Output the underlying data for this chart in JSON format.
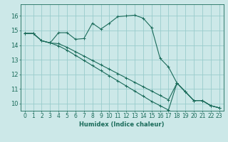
{
  "xlabel": "Humidex (Indice chaleur)",
  "background_color": "#cce8e8",
  "grid_color": "#99cccc",
  "line_color": "#1a6b5a",
  "xlim": [
    -0.5,
    23.5
  ],
  "ylim": [
    9.5,
    16.8
  ],
  "x_ticks": [
    0,
    1,
    2,
    3,
    4,
    5,
    6,
    7,
    8,
    9,
    10,
    11,
    12,
    13,
    14,
    15,
    16,
    17,
    18,
    19,
    20,
    21,
    22,
    23
  ],
  "y_ticks": [
    10,
    11,
    12,
    13,
    14,
    15,
    16
  ],
  "line1_y": [
    14.8,
    14.8,
    14.3,
    14.15,
    14.85,
    14.85,
    14.4,
    14.45,
    15.5,
    15.1,
    15.5,
    15.95,
    16.0,
    16.05,
    15.85,
    15.2,
    13.1,
    12.5,
    11.4,
    10.8,
    10.2,
    10.2,
    9.85,
    9.7
  ],
  "line2_y": [
    14.8,
    14.8,
    14.3,
    14.15,
    14.1,
    13.85,
    13.55,
    13.25,
    12.95,
    12.65,
    12.35,
    12.05,
    11.75,
    11.45,
    11.15,
    10.85,
    10.55,
    10.25,
    11.4,
    10.8,
    10.2,
    10.2,
    9.85,
    9.7
  ],
  "line3_y": [
    14.8,
    14.8,
    14.3,
    14.15,
    13.95,
    13.65,
    13.3,
    12.95,
    12.6,
    12.25,
    11.9,
    11.55,
    11.2,
    10.85,
    10.5,
    10.15,
    9.85,
    9.55,
    11.4,
    10.8,
    10.2,
    10.2,
    9.85,
    9.7
  ],
  "tick_fontsize": 5.5,
  "xlabel_fontsize": 6.0
}
